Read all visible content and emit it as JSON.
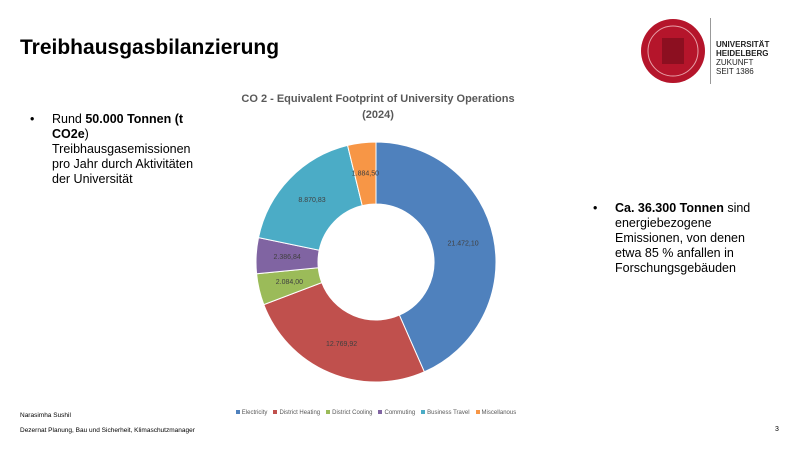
{
  "slide": {
    "title": "Treibhausgasbilanzierung",
    "bullet_left": [
      "Rund ",
      "50.000 Tonnen (t CO2e",
      ") Treibhausgasemissionen pro Jahr durch Aktivitäten der Universität"
    ],
    "bullet_right": [
      "Ca. 36.300 Tonnen",
      " sind energiebezogene Emissionen, von denen etwa 85 % anfallen in Forschungsgebäuden"
    ],
    "logo": [
      "UNIVERSITÄT",
      "HEIDELBERG",
      "ZUKUNFT",
      "SEIT 1386"
    ],
    "footer_name": "Narasimha Sushil",
    "footer_dept": "Dezernat Planung, Bau und Sicherheit, Klimaschutzmanager",
    "page_number": "3"
  },
  "chart_data": {
    "type": "donut",
    "title": "CO 2 - Equivalent Footprint of University Operations (2024)",
    "categories": [
      "Electricity",
      "District Heating",
      "District Cooling",
      "Commuting",
      "Business Travel",
      "Miscellanous"
    ],
    "values": [
      21472.1,
      12769.92,
      2084.0,
      2386.84,
      8870.83,
      1884.5
    ],
    "value_labels": [
      "21.472,10",
      "12.769,92",
      "2.084,00",
      "2.386,84",
      "8.870,83",
      "1.884,50"
    ],
    "colors": [
      "#4f81bd",
      "#c0504d",
      "#9bbb59",
      "#8064a2",
      "#4bacc6",
      "#f79646"
    ]
  }
}
